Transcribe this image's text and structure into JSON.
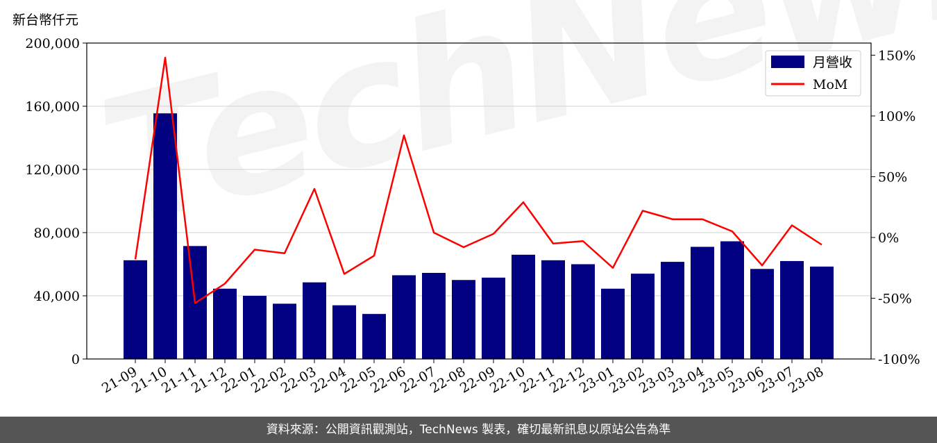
{
  "unit_label": "新台幣仟元",
  "watermark": "TechNews",
  "footer": "資料來源：公開資訊觀測站，TechNews 製表，確切最新訊息以原站公告為準",
  "colors": {
    "bar": "#000080",
    "line": "#ff0000",
    "grid": "#d0d0d0"
  },
  "chart_data": {
    "type": "bar",
    "categories": [
      "21-09",
      "21-10",
      "21-11",
      "21-12",
      "22-01",
      "22-02",
      "22-03",
      "22-04",
      "22-05",
      "22-06",
      "22-07",
      "22-08",
      "22-09",
      "22-10",
      "22-11",
      "22-12",
      "23-01",
      "23-02",
      "23-03",
      "23-04",
      "23-05",
      "23-06",
      "23-07",
      "23-08"
    ],
    "series": [
      {
        "name": "月營收",
        "type": "bar",
        "axis": "left",
        "values": [
          62500,
          155500,
          71500,
          44500,
          40000,
          35000,
          48500,
          34000,
          28500,
          53000,
          54500,
          50000,
          51500,
          66000,
          62500,
          60000,
          44500,
          54000,
          61500,
          71000,
          74500,
          57000,
          62000,
          58500
        ]
      },
      {
        "name": "MoM",
        "type": "line",
        "axis": "right",
        "values": [
          -18,
          148,
          -54,
          -38,
          -10,
          -13,
          40,
          -30,
          -15,
          84,
          4,
          -8,
          3,
          29,
          -5,
          -3,
          -25,
          22,
          15,
          15,
          5,
          -23,
          10,
          -6
        ]
      }
    ],
    "y_left": {
      "ylim": [
        0,
        200000
      ],
      "ticks": [
        0,
        40000,
        80000,
        120000,
        160000,
        200000
      ],
      "tick_labels": [
        "0",
        "40,000",
        "80,000",
        "120,000",
        "160,000",
        "200,000"
      ]
    },
    "y_right": {
      "ylim": [
        -100,
        160
      ],
      "ticks": [
        -100,
        -50,
        0,
        50,
        100,
        150
      ],
      "tick_labels": [
        "-100%",
        "-50%",
        "0%",
        "50%",
        "100%",
        "150%"
      ]
    },
    "grid": true,
    "legend_position": "top-right"
  }
}
